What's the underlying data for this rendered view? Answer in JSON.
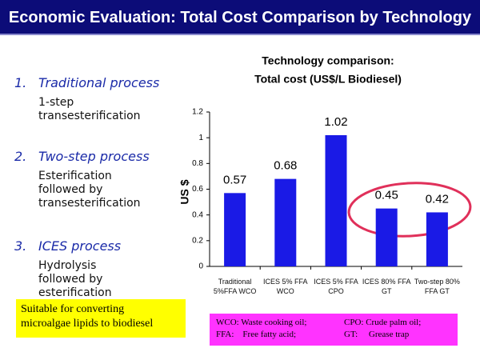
{
  "header": {
    "title": "Economic Evaluation: Total Cost Comparison by Technology"
  },
  "list": [
    {
      "number": "1.",
      "title": "Traditional process",
      "detail": "1-step\ntransesterification"
    },
    {
      "number": "2.",
      "title": "Two-step process",
      "detail": "Esterification\nfollowed by\ntransesterification"
    },
    {
      "number": "3.",
      "title": "ICES process",
      "detail": "Hydrolysis\nfollowed by\nesterification"
    }
  ],
  "note": "Suitable for converting\nmicroalgae lipids to biodiesel",
  "abbreviations": [
    "WCO:  Waste cooking oil;",
    "CPO:  Crude palm oil;",
    "FFA:    Free fatty acid;",
    "GT:     Grease trap"
  ],
  "chart_data": {
    "type": "bar",
    "title": "Technology comparison:",
    "subtitle": "Total cost (US$/L Biodiesel)",
    "y_label": "US $",
    "categories": [
      "Traditional\n5%FFA WCO",
      "ICES 5% FFA\nWCO",
      "ICES 5% FFA\nCPO",
      "ICES 80% FFA\nGT",
      "Two-step 80%\nFFA GT"
    ],
    "values": [
      0.57,
      0.68,
      1.02,
      0.45,
      0.42
    ],
    "color": "#1a1ae6",
    "ylim": [
      0,
      1.2
    ],
    "yticks": [
      0,
      0.2,
      0.4,
      0.6,
      0.8,
      1,
      1.2
    ],
    "grid": false
  }
}
